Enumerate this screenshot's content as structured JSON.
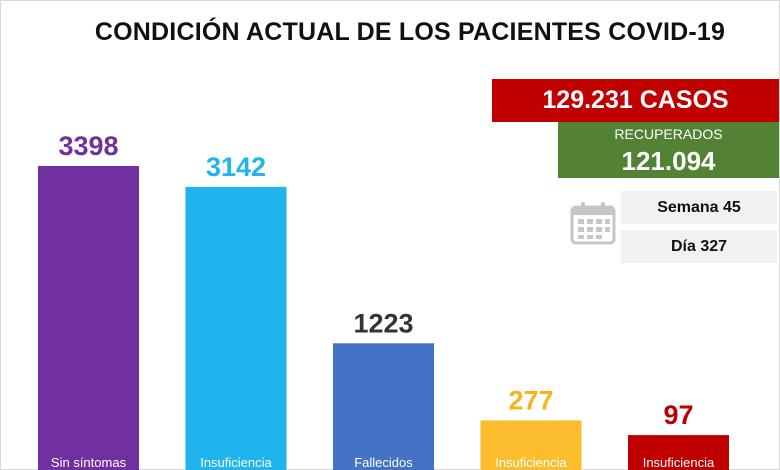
{
  "title": "CONDICIÓN ACTUAL DE LOS PACIENTES COVID-19",
  "summary": {
    "total_cases": "129.231 CASOS",
    "recovered_label": "RECUPERADOS",
    "recovered_value": "121.094",
    "week": "Semana 45",
    "day": "Día 327"
  },
  "icons": {
    "calendar": "calendar-icon"
  },
  "colors": {
    "total_bg": "#c00000",
    "recovered_bg": "#548235",
    "calendar": "#c6c6c6"
  },
  "chart_data": {
    "type": "bar",
    "title": "CONDICIÓN ACTUAL DE LOS PACIENTES COVID-19",
    "categories": [
      "Sin síntomas",
      "Insuficiencia",
      "Fallecidos",
      "Insuficiencia",
      "Insuficiencia"
    ],
    "values": [
      3398,
      3142,
      1223,
      277,
      97
    ],
    "value_labels": [
      "3398",
      "3142",
      "1223",
      "277",
      "97"
    ],
    "colors": [
      "#7030a0",
      "#1fb4ee",
      "#4472c4",
      "#fbbc2e",
      "#c00000"
    ],
    "label_colors": [
      "#7030a0",
      "#1fb4ee",
      "#333333",
      "#f4b41a",
      "#c00000"
    ],
    "ylim": [
      0,
      3398
    ],
    "grid": false,
    "legend": "none"
  }
}
